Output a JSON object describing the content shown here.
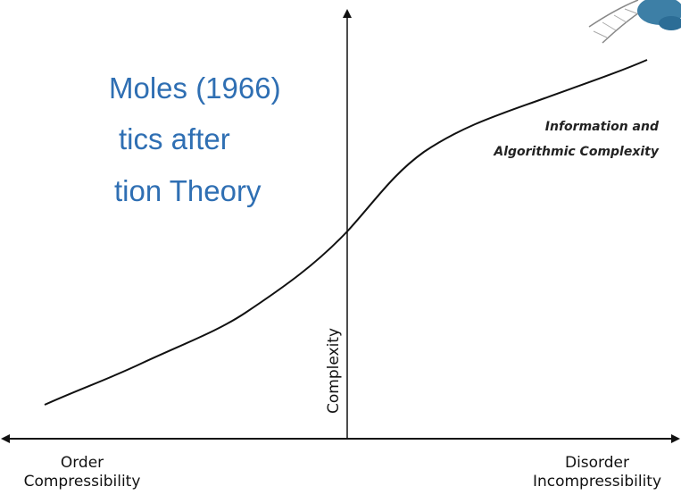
{
  "slide": {
    "title_lines": [
      "Moles (1966)",
      "tics after",
      "tion Theory"
    ]
  },
  "diagram": {
    "curve_label": [
      "Information and",
      "Algorithmic Complexity"
    ],
    "y_axis_label": "Complexity",
    "x_axis": {
      "left": [
        "Order",
        "Compressibility"
      ],
      "right": [
        "Disorder",
        "Incompressibility"
      ]
    }
  }
}
